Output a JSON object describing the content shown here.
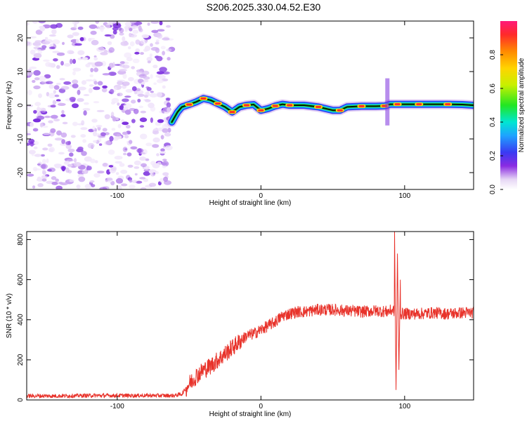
{
  "title": "S206.2025.330.04.52.E30",
  "chart_data": [
    {
      "type": "heatmap",
      "title": "S206.2025.330.04.52.E30",
      "xlabel": "Height of straight line (km)",
      "ylabel": "Frequency (Hz)",
      "xlim": [
        -163,
        148
      ],
      "ylim": [
        -25,
        25
      ],
      "xticks": [
        -100,
        0,
        100
      ],
      "yticks": [
        -20,
        -10,
        0,
        10,
        20
      ],
      "colorbar": {
        "label": "Normalized spectral amplitude",
        "ticks": [
          "0.0",
          "0.2",
          "0.4",
          "0.6",
          "0.8"
        ],
        "range": [
          0,
          1
        ]
      },
      "noise_region_x": [
        -163,
        -62
      ],
      "ridge": {
        "x": [
          -62,
          -58,
          -55,
          -50,
          -45,
          -40,
          -35,
          -30,
          -25,
          -20,
          -15,
          -10,
          -5,
          0,
          5,
          10,
          15,
          20,
          30,
          40,
          50,
          55,
          60,
          70,
          80,
          86,
          90,
          95,
          100,
          110,
          120,
          130,
          140,
          148
        ],
        "freq": [
          -5,
          -2,
          -0.5,
          0.2,
          1,
          2,
          1.5,
          0.5,
          -0.5,
          -2,
          -0.5,
          0,
          0.2,
          -1.5,
          -1,
          -0.2,
          0.3,
          0,
          0,
          -0.5,
          -1.5,
          -1.5,
          -0.5,
          -0.3,
          -0.3,
          -0.2,
          0.3,
          0.3,
          0.3,
          0.3,
          0.3,
          0.3,
          0.2,
          0
        ]
      }
    },
    {
      "type": "line",
      "xlabel": "Height of straight line (km)",
      "ylabel": "SNR (10 * v/v)",
      "xlim": [
        -163,
        148
      ],
      "ylim": [
        0,
        840
      ],
      "xticks": [
        -100,
        0,
        100
      ],
      "yticks": [
        0,
        200,
        400,
        600,
        800
      ],
      "series": [
        {
          "name": "SNR",
          "color": "#e8332b",
          "x": [
            -163,
            -140,
            -120,
            -100,
            -80,
            -60,
            -55,
            -50,
            -45,
            -40,
            -35,
            -30,
            -25,
            -20,
            -15,
            -10,
            -5,
            0,
            5,
            10,
            15,
            20,
            25,
            30,
            40,
            50,
            60,
            70,
            80,
            88,
            92,
            95,
            100,
            110,
            120,
            130,
            140,
            148
          ],
          "y": [
            20,
            20,
            22,
            22,
            22,
            22,
            30,
            80,
            120,
            150,
            170,
            200,
            230,
            260,
            290,
            320,
            330,
            350,
            370,
            390,
            420,
            430,
            440,
            440,
            450,
            450,
            445,
            440,
            445,
            440,
            450,
            430,
            430,
            430,
            435,
            430,
            435,
            435
          ]
        }
      ],
      "spike_annotations": {
        "x": [
          93,
          94,
          95,
          96,
          97
        ],
        "y": [
          840,
          50,
          730,
          150,
          600
        ]
      }
    }
  ]
}
